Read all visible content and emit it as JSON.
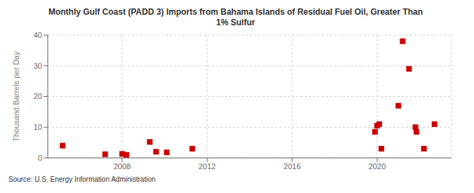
{
  "chart_data": {
    "type": "scatter",
    "title": "Monthly Gulf Coast (PADD 3) Imports from Bahama Islands of Residual Fuel Oil, Greater Than\n1% Sulfur",
    "ylabel": "Thousand Barrels per Day",
    "annotations": [
      "Source: U.S. Energy Information Administration"
    ],
    "x": [
      2005.2,
      2007.2,
      2008.0,
      2008.2,
      2009.3,
      2009.6,
      2010.1,
      2011.3,
      2019.9,
      2020.0,
      2020.1,
      2020.2,
      2021.0,
      2021.2,
      2021.5,
      2021.8,
      2021.85,
      2022.2,
      2022.7
    ],
    "values": [
      4.0,
      1.2,
      1.3,
      1.0,
      5.2,
      2.0,
      1.8,
      3.0,
      8.5,
      10.5,
      11.0,
      3.0,
      17.0,
      38.0,
      29.0,
      10.0,
      8.5,
      3.0,
      11.0
    ],
    "color": "#cc0000",
    "marker": "square",
    "xlim": [
      2004.5,
      2023.5
    ],
    "ylim": [
      0,
      40
    ],
    "xticks": [
      2008,
      2012,
      2016,
      2020
    ],
    "yticks": [
      0,
      10,
      20,
      30,
      40
    ],
    "grid": true
  }
}
